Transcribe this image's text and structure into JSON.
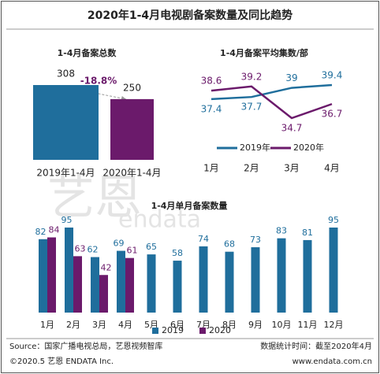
{
  "title": "2020年1-4月电视剧备案数量及同比趋势",
  "watermark": [
    "艺恩",
    "endata"
  ],
  "footer": {
    "source": "Source：国家广播电视总局，艺恩视频智库",
    "date": "数据统计时间：截至2020年4月",
    "copyright": "©2020.5 艺恩 ENDATA Inc.",
    "url": "www.endata.com.cn"
  },
  "chart_data": [
    {
      "type": "bar",
      "title": "1-4月备案总数",
      "categories": [
        "2019年1-4月",
        "2020年1-4月"
      ],
      "values": [
        308,
        250
      ],
      "colors": [
        "#1f6e9c",
        "#6b1a6b"
      ],
      "annotation": "-18.8%"
    },
    {
      "type": "line",
      "title": "1-4月备案平均集数/部",
      "categories": [
        "1月",
        "2月",
        "3月",
        "4月"
      ],
      "series": [
        {
          "name": "2019年",
          "color": "#1f6e9c",
          "values": [
            37.4,
            37.7,
            39.0,
            39.4
          ]
        },
        {
          "name": "2020年",
          "color": "#6b1a6b",
          "values": [
            38.6,
            39.2,
            34.7,
            36.7
          ]
        }
      ],
      "legend": "bottom"
    },
    {
      "type": "grouped-bar",
      "title": "1-4月单月备案数量",
      "categories": [
        "1月",
        "2月",
        "3月",
        "4月",
        "5月",
        "6月",
        "7月",
        "8月",
        "9月",
        "10月",
        "11月",
        "12月"
      ],
      "series": [
        {
          "name": "2019",
          "color": "#1f6e9c",
          "values": [
            82,
            95,
            62,
            69,
            65,
            58,
            74,
            68,
            73,
            83,
            81,
            95
          ]
        },
        {
          "name": "2020",
          "color": "#6b1a6b",
          "values": [
            84,
            63,
            42,
            61,
            null,
            null,
            null,
            null,
            null,
            null,
            null,
            null
          ]
        }
      ],
      "legend": "bottom"
    }
  ]
}
